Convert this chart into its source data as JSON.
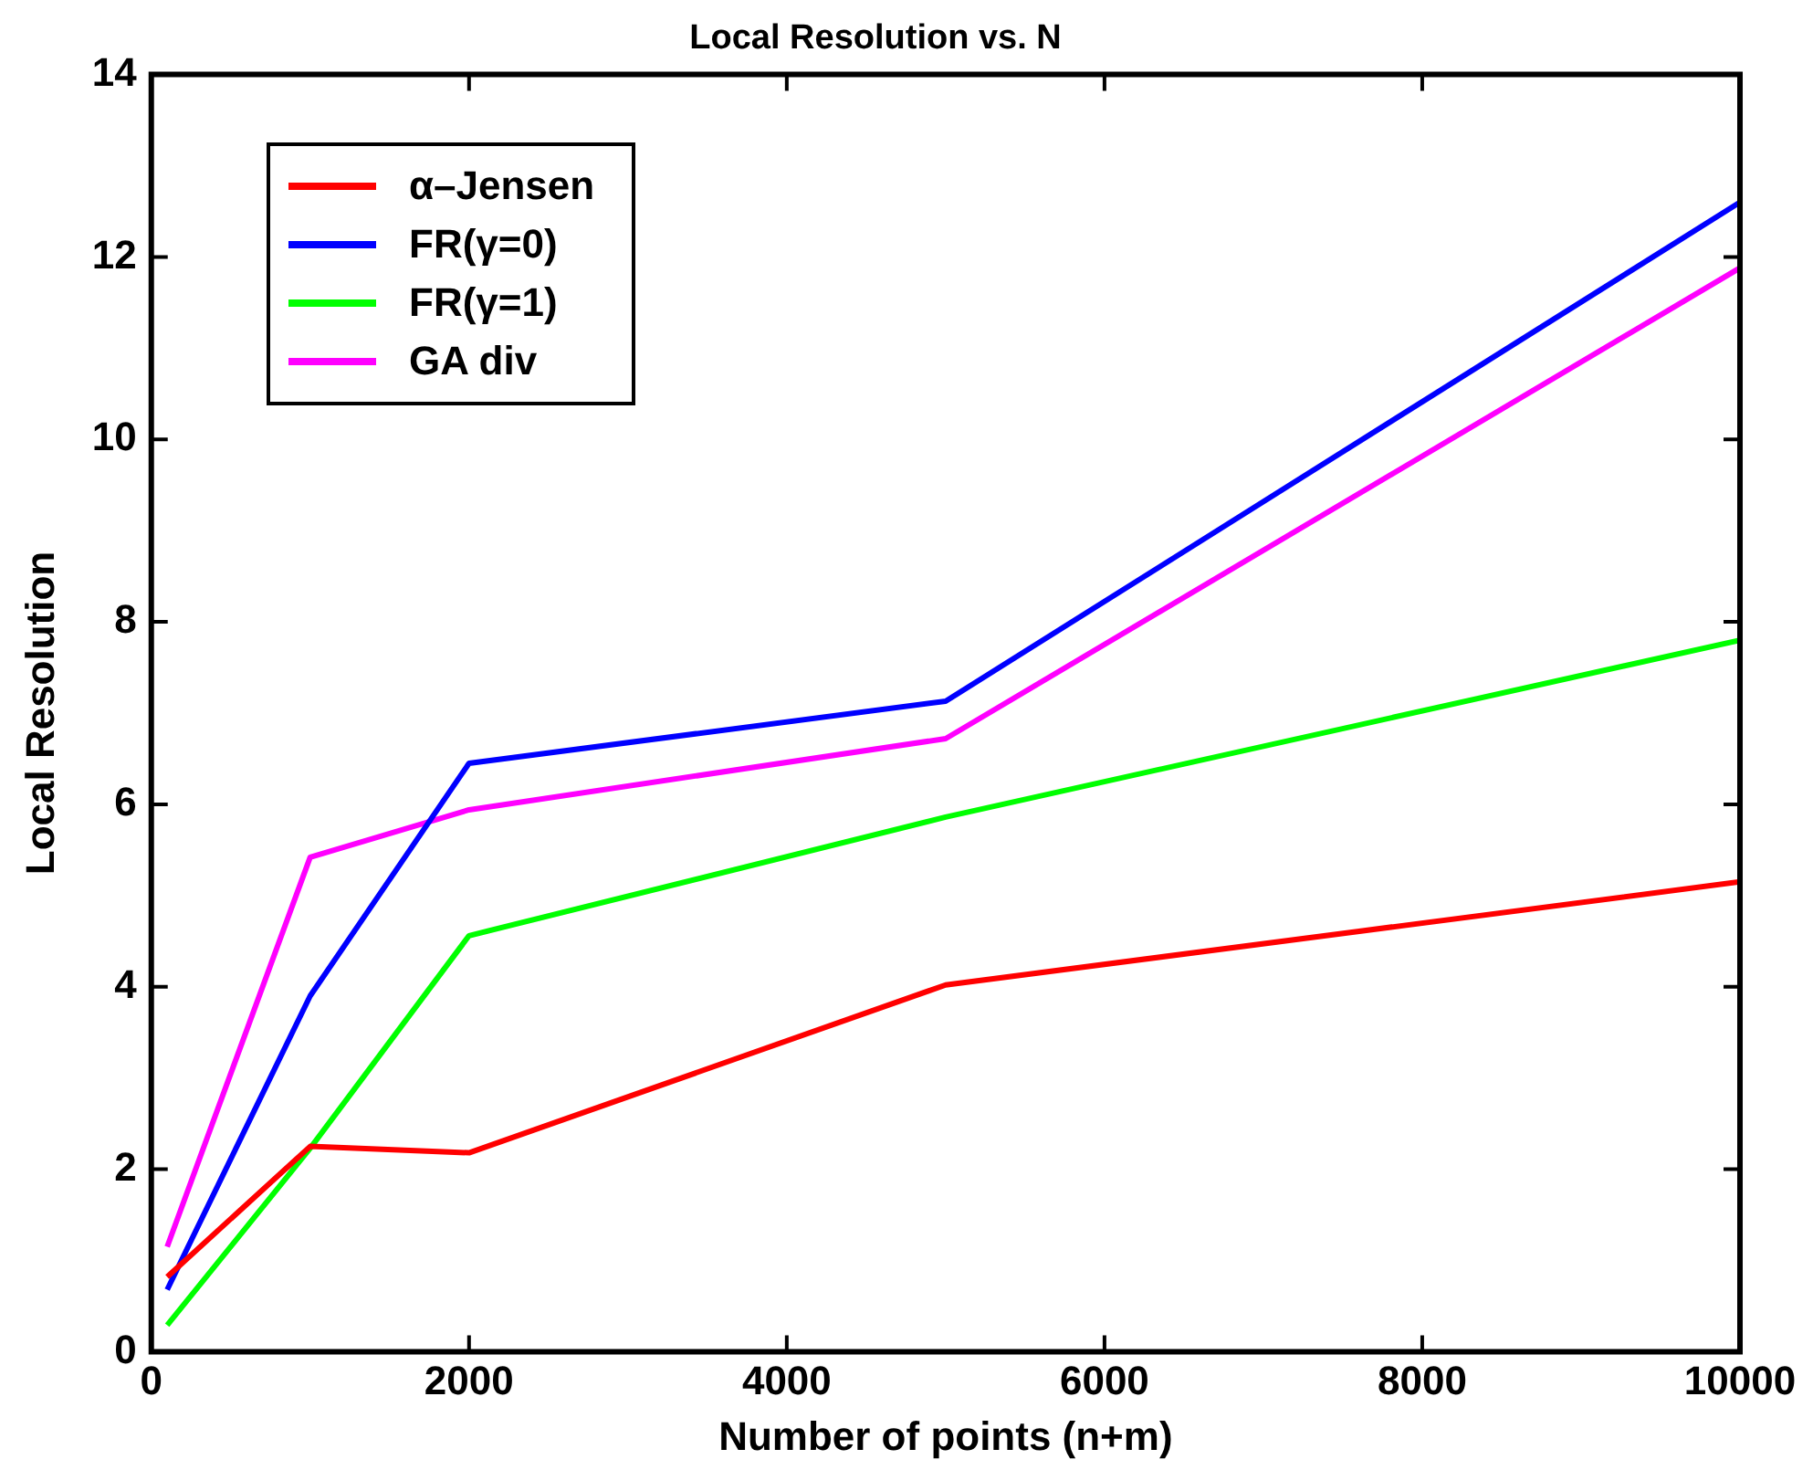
{
  "chart_data": {
    "type": "line",
    "title": "Local Resolution vs. N",
    "xlabel": "Number of points (n+m)",
    "ylabel": "Local Resolution",
    "x": [
      100,
      1000,
      2000,
      5000,
      10000
    ],
    "series": [
      {
        "name": "α–Jensen",
        "color": "#ff0000",
        "values": [
          0.82,
          2.25,
          2.18,
          4.02,
          5.15
        ]
      },
      {
        "name": "FR(γ=0)",
        "color": "#0000ff",
        "values": [
          0.68,
          3.9,
          6.45,
          7.13,
          12.6
        ]
      },
      {
        "name": "FR(γ=1)",
        "color": "#00ff00",
        "values": [
          0.29,
          2.23,
          4.56,
          5.86,
          7.8
        ]
      },
      {
        "name": "GA div",
        "color": "#ff00ff",
        "values": [
          1.15,
          5.42,
          5.94,
          6.72,
          11.88
        ]
      }
    ],
    "xlim": [
      0,
      10000
    ],
    "xticks": [
      0,
      2000,
      4000,
      6000,
      8000,
      10000
    ],
    "ylim": [
      0,
      14
    ],
    "yticks": [
      0,
      2,
      4,
      6,
      8,
      10,
      12,
      14
    ],
    "legend": "top left",
    "grid": false,
    "marker": "none",
    "line_style": "solid"
  }
}
